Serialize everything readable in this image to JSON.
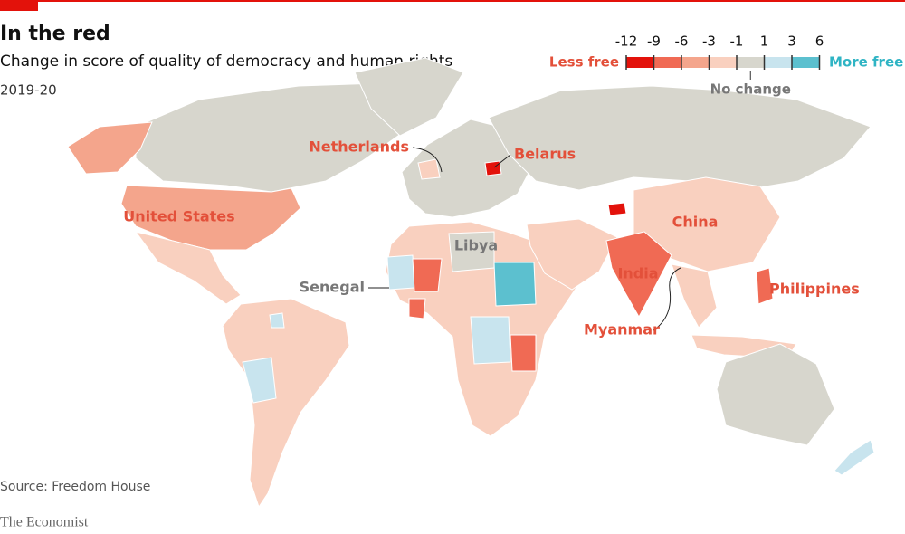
{
  "header": {
    "title": "In the red",
    "subtitle": "Change in score of quality of democracy and human rights",
    "period": "2019-20"
  },
  "legend": {
    "ticks": [
      -12,
      -9,
      -6,
      -3,
      -1,
      1,
      3,
      6
    ],
    "colors": [
      "#e3120b",
      "#f06a54",
      "#f4a58c",
      "#f9d0bf",
      "#d7d6cd",
      "#c8e4ee",
      "#5cc0cf"
    ],
    "less_label": "Less free",
    "more_label": "More free",
    "mid_label": "No change"
  },
  "labels": [
    "Netherlands",
    "Belarus",
    "United States",
    "China",
    "Libya",
    "Senegal",
    "India",
    "Philippines",
    "Myanmar"
  ],
  "footer": {
    "source": "Source: Freedom House",
    "brand": "The Economist"
  }
}
